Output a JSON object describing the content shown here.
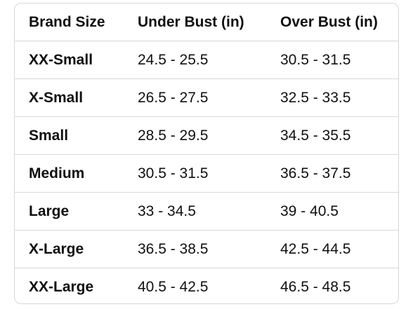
{
  "size_chart": {
    "headers": [
      "Brand Size",
      "Under Bust (in)",
      "Over Bust (in)"
    ],
    "rows": [
      {
        "size": "XX-Small",
        "under_bust": "24.5 - 25.5",
        "over_bust": "30.5 - 31.5"
      },
      {
        "size": "X-Small",
        "under_bust": "26.5 - 27.5",
        "over_bust": "32.5 - 33.5"
      },
      {
        "size": "Small",
        "under_bust": "28.5 - 29.5",
        "over_bust": "34.5 - 35.5"
      },
      {
        "size": "Medium",
        "under_bust": "30.5 - 31.5",
        "over_bust": "36.5 - 37.5"
      },
      {
        "size": "Large",
        "under_bust": "33 - 34.5",
        "over_bust": "39 - 40.5"
      },
      {
        "size": "X-Large",
        "under_bust": "36.5 - 38.5",
        "over_bust": "42.5 - 44.5"
      },
      {
        "size": "XX-Large",
        "under_bust": "40.5 - 42.5",
        "over_bust": "46.5 - 48.5"
      }
    ]
  }
}
